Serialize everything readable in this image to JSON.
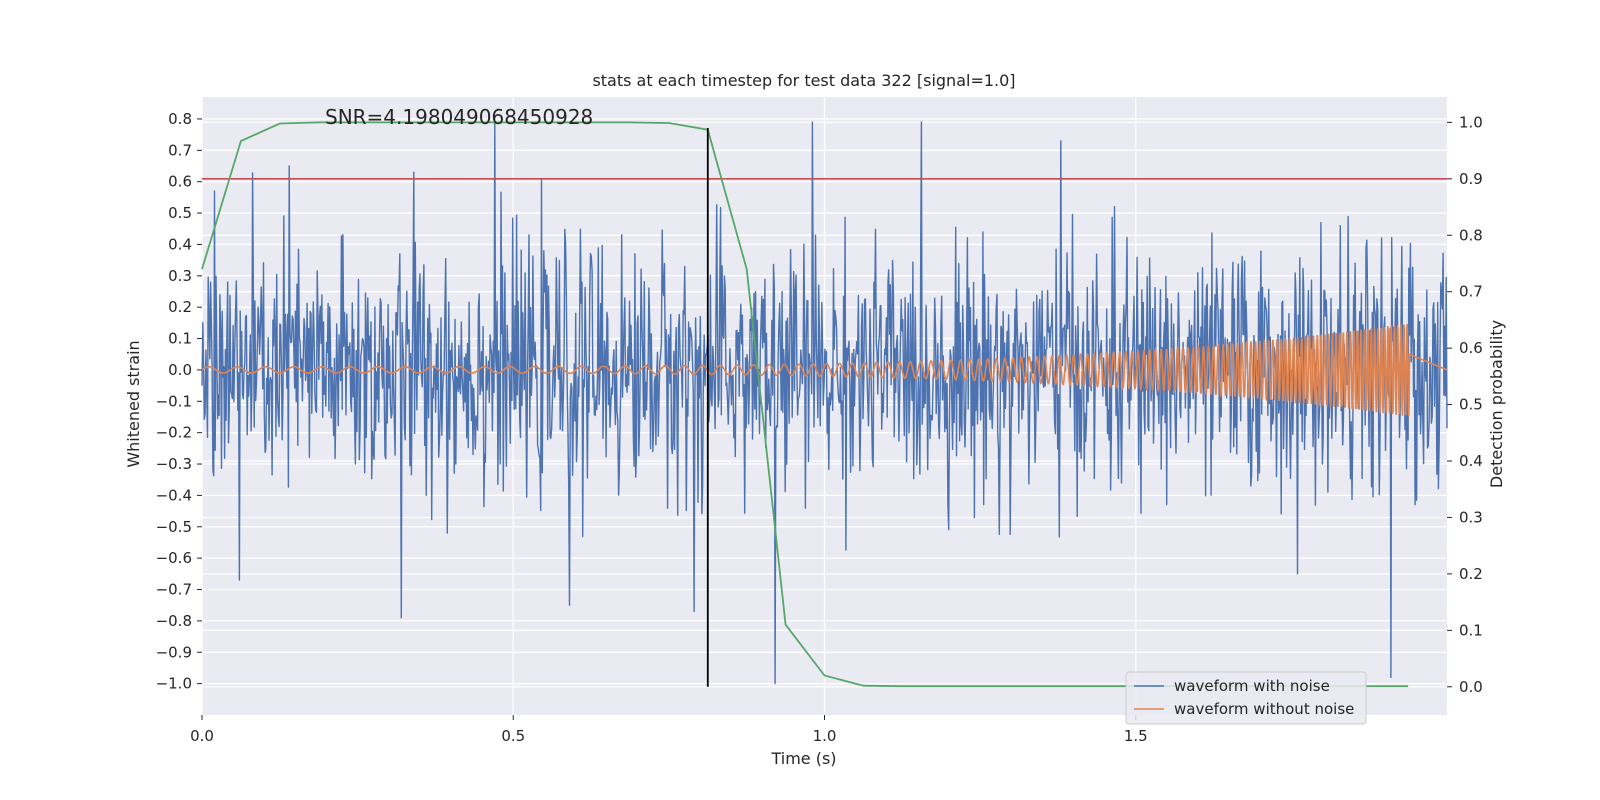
{
  "chart_data": {
    "type": "line",
    "title": "stats at each timestep for test data 322 [signal=1.0]",
    "annotation": "SNR=4.198049068450928",
    "xlabel": "Time (s)",
    "ylabel_left": "Whitened strain",
    "ylabel_right": "Detection probability",
    "xlim": [
      0.0,
      2.0
    ],
    "ylim_left": [
      -1.1,
      0.87
    ],
    "ylim_right": [
      -0.05,
      1.045
    ],
    "x_ticks": [
      0.0,
      0.5,
      1.0,
      1.5
    ],
    "x_tick_labels": [
      "0.0",
      "0.5",
      "1.0",
      "1.5"
    ],
    "y_left_ticks": [
      0.8,
      0.7,
      0.6,
      0.5,
      0.4,
      0.3,
      0.2,
      0.1,
      0.0,
      -0.1,
      -0.2,
      -0.3,
      -0.4,
      -0.5,
      -0.6,
      -0.7,
      -0.8,
      -0.9,
      -1.0
    ],
    "y_left_tick_labels": [
      "0.8",
      "0.7",
      "0.6",
      "0.5",
      "0.4",
      "0.3",
      "0.2",
      "0.1",
      "0.0",
      "−0.1",
      "−0.2",
      "−0.3",
      "−0.4",
      "−0.5",
      "−0.6",
      "−0.7",
      "−0.8",
      "−0.9",
      "−1.0"
    ],
    "y_right_ticks": [
      1.0,
      0.9,
      0.8,
      0.7,
      0.6,
      0.5,
      0.4,
      0.3,
      0.2,
      0.1,
      0.0
    ],
    "y_right_tick_labels": [
      "1.0",
      "0.9",
      "0.8",
      "0.7",
      "0.6",
      "0.5",
      "0.4",
      "0.3",
      "0.2",
      "0.1",
      "0.0"
    ],
    "legend_position": "lower-right",
    "series": [
      {
        "name": "waveform with noise",
        "color": "#4c72b0",
        "axis": "left",
        "kind": "noise",
        "x_range": [
          0.0,
          2.0
        ],
        "amplitude_range": [
          -1.0,
          0.79
        ],
        "spikes": [
          {
            "x": 0.02,
            "y": 0.57
          },
          {
            "x": 0.06,
            "y": -0.67
          },
          {
            "x": 0.14,
            "y": 0.65
          },
          {
            "x": 0.32,
            "y": -0.79
          },
          {
            "x": 0.34,
            "y": 0.63
          },
          {
            "x": 0.47,
            "y": 0.79
          },
          {
            "x": 0.59,
            "y": -0.75
          },
          {
            "x": 0.79,
            "y": -0.77
          },
          {
            "x": 0.92,
            "y": -1.0
          },
          {
            "x": 0.98,
            "y": 0.79
          },
          {
            "x": 1.38,
            "y": 0.73
          },
          {
            "x": 1.76,
            "y": -0.65
          },
          {
            "x": 1.91,
            "y": -0.98
          }
        ]
      },
      {
        "name": "waveform without noise",
        "color": "#dd8452",
        "axis": "left",
        "kind": "chirp",
        "x_range": [
          0.0,
          1.94
        ],
        "flat_until": 2.0,
        "amplitude_start": 0.01,
        "amplitude_end": 0.15,
        "frequency_start_hz": 22,
        "frequency_end_hz": 200
      },
      {
        "name": "detection probability",
        "color": "#55a868",
        "axis": "right",
        "x": [
          0.0,
          0.0625,
          0.125,
          0.1875,
          0.25,
          0.3125,
          0.375,
          0.4375,
          0.5,
          0.5625,
          0.625,
          0.6875,
          0.75,
          0.8125,
          0.875,
          0.9375,
          1.0,
          1.0625,
          1.125,
          1.1875,
          1.25,
          1.3125,
          1.375,
          1.4375,
          1.5,
          1.5625,
          1.625,
          1.6875,
          1.75,
          1.8125,
          1.875,
          1.9375
        ],
        "y": [
          0.74,
          0.967,
          0.998,
          1.0,
          1.0,
          1.0,
          1.0,
          1.0,
          1.0,
          1.0,
          1.0,
          1.0,
          0.999,
          0.987,
          0.74,
          0.11,
          0.02,
          0.002,
          0.001,
          0.001,
          0.001,
          0.001,
          0.001,
          0.001,
          0.001,
          0.001,
          0.001,
          0.001,
          0.001,
          0.001,
          0.001,
          0.001
        ]
      }
    ],
    "threshold": {
      "value": 0.9,
      "axis": "right",
      "color": "#c44e52"
    },
    "marker_line": {
      "x": 0.8125,
      "color": "#000000",
      "y_range": [
        0.0,
        0.99
      ],
      "axis": "right"
    },
    "plot_background": "#eaeaf2"
  }
}
